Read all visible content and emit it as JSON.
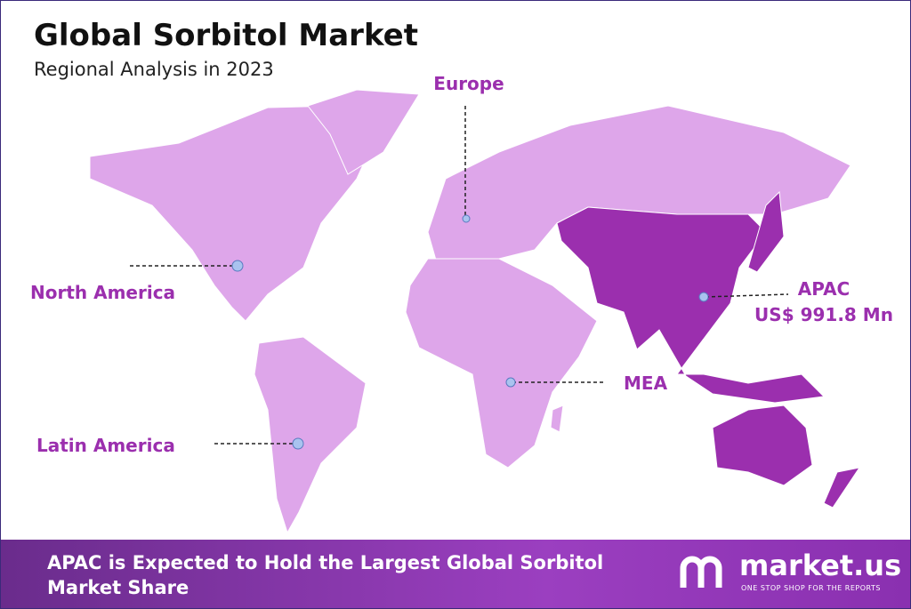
{
  "header": {
    "title": "Global Sorbitol Market",
    "subtitle": "Regional Analysis in 2023"
  },
  "regions": [
    {
      "label": "Europe"
    },
    {
      "label": "North America"
    },
    {
      "label": "APAC",
      "value": "US$ 991.8 Mn"
    },
    {
      "label": "MEA"
    },
    {
      "label": "Latin America"
    }
  ],
  "footer": {
    "headline": "APAC is Expected to Hold the Largest Global Sorbitol Market Share",
    "brand": "market.us",
    "tagline": "ONE STOP SHOP FOR THE REPORTS"
  }
}
